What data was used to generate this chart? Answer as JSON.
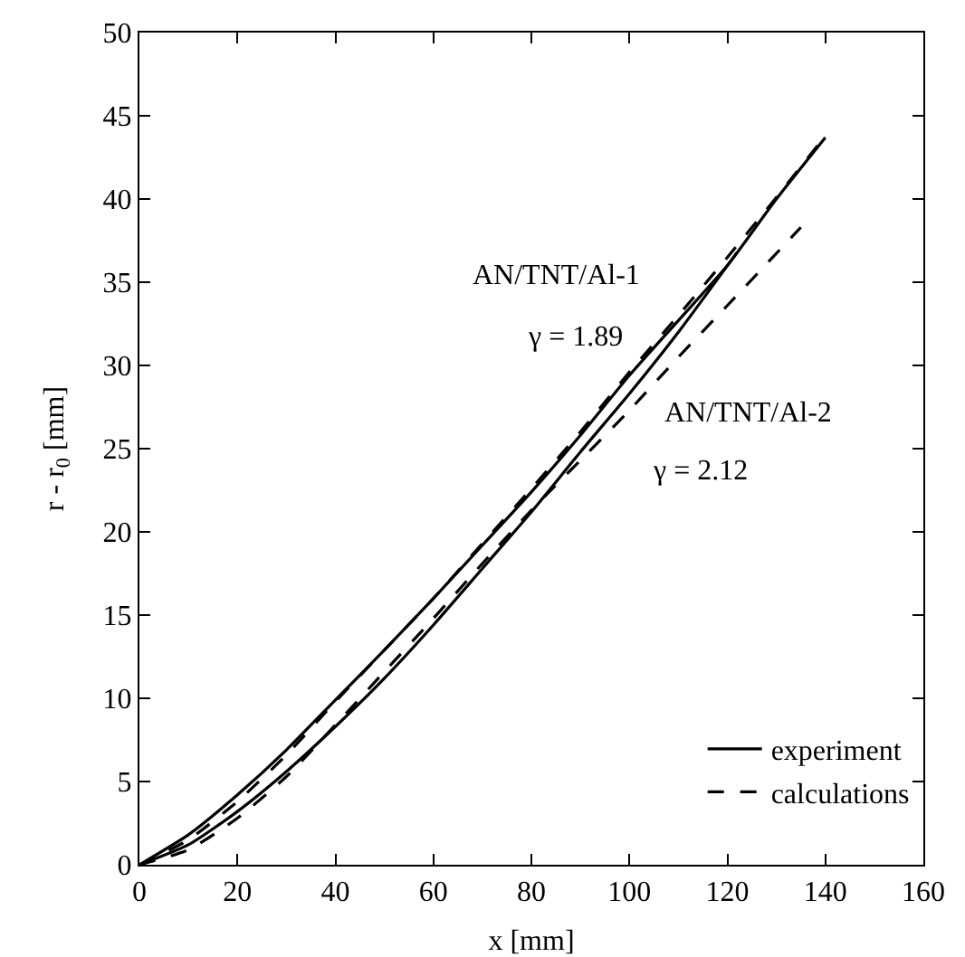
{
  "chart_data": {
    "type": "line",
    "xlabel": "x [mm]",
    "ylabel": "r - r$_{0}$ [mm]",
    "xlim": [
      0,
      160
    ],
    "xticks": [
      0,
      20,
      40,
      60,
      80,
      100,
      120,
      140,
      160
    ],
    "ylim": [
      0,
      50
    ],
    "yticks": [
      0,
      5,
      10,
      15,
      20,
      25,
      30,
      35,
      40,
      45,
      50
    ],
    "grid": false,
    "legend": "bottom right",
    "marker": "none",
    "series": [
      {
        "name": "experiment",
        "color": "#000000",
        "line_style": "solid",
        "x": [
          0,
          10,
          20,
          30,
          40,
          50,
          60,
          70,
          80,
          90,
          100,
          110,
          120,
          130,
          140
        ],
        "values": [
          0,
          1.8,
          4.2,
          6.9,
          9.9,
          12.9,
          16.0,
          19.2,
          22.4,
          25.8,
          29.4,
          32.7,
          36.0,
          40.0,
          43.7
        ]
      },
      {
        "color": "#000000",
        "line_style": "solid",
        "x": [
          0,
          10,
          20,
          30,
          40,
          50,
          60,
          70,
          80,
          90,
          100,
          110,
          122
        ],
        "values": [
          0,
          1.2,
          3.2,
          5.6,
          8.3,
          11.2,
          14.4,
          17.8,
          21.2,
          24.8,
          28.3,
          32.0,
          36.8
        ]
      },
      {
        "name": "calculations",
        "color": "#000000",
        "line_style": "dashed",
        "x": [
          0,
          10,
          20,
          30,
          40,
          50,
          60,
          70,
          80,
          90,
          100,
          110,
          120,
          130,
          140
        ],
        "values": [
          0,
          1.5,
          3.8,
          6.6,
          9.8,
          12.9,
          16.0,
          19.3,
          22.6,
          26.0,
          29.6,
          33.0,
          36.5,
          40.1,
          43.8
        ]
      },
      {
        "color": "#000000",
        "line_style": "dashed",
        "x": [
          0,
          10,
          20,
          30,
          40,
          50,
          60,
          70,
          80,
          90,
          100,
          110,
          120,
          135
        ],
        "values": [
          0,
          0.9,
          2.8,
          5.3,
          8.4,
          11.6,
          14.8,
          18.1,
          21.3,
          24.3,
          27.3,
          30.5,
          33.6,
          38.3
        ]
      }
    ],
    "annotations": [
      "AN/TNT/Al-1",
      "γ = 1.89",
      "AN/TNT/Al-2",
      "γ = 2.12"
    ]
  }
}
